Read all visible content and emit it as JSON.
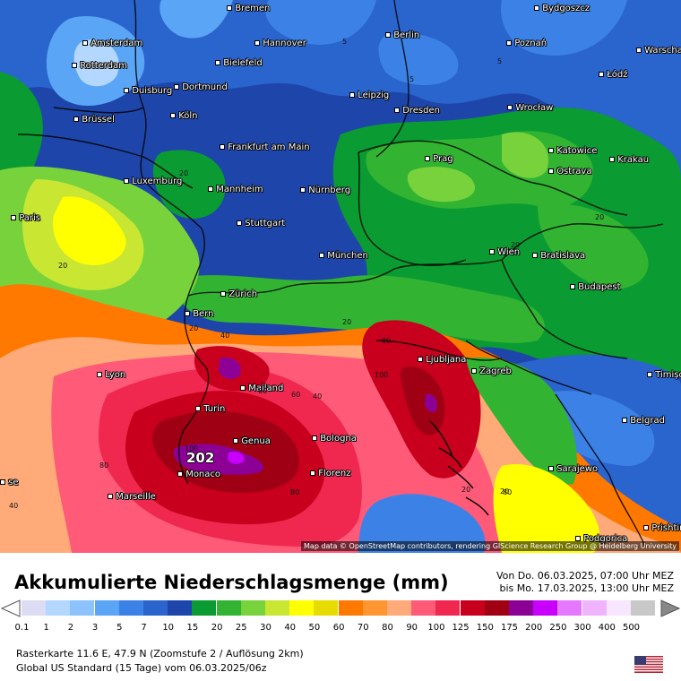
{
  "map": {
    "cities": [
      {
        "name": "Bremen"
      },
      {
        "name": "Amsterdam"
      },
      {
        "name": "Rotterdam"
      },
      {
        "name": "Hannover"
      },
      {
        "name": "Berlin"
      },
      {
        "name": "Bydgoszcz"
      },
      {
        "name": "Poznań"
      },
      {
        "name": "Warscha"
      },
      {
        "name": "Bielefeld"
      },
      {
        "name": "Duisburg"
      },
      {
        "name": "Dortmund"
      },
      {
        "name": "Łódź"
      },
      {
        "name": "Leipzig"
      },
      {
        "name": "Brüssel"
      },
      {
        "name": "Köln"
      },
      {
        "name": "Dresden"
      },
      {
        "name": "Wrocław"
      },
      {
        "name": "Frankfurt am Main"
      },
      {
        "name": "Katowice"
      },
      {
        "name": "Prag"
      },
      {
        "name": "Krakau"
      },
      {
        "name": "Ostrava"
      },
      {
        "name": "Luxemburg"
      },
      {
        "name": "Mannheim"
      },
      {
        "name": "Nürnberg"
      },
      {
        "name": "Paris"
      },
      {
        "name": "Stuttgart"
      },
      {
        "name": "Wien"
      },
      {
        "name": "Bratislava"
      },
      {
        "name": "München"
      },
      {
        "name": "Budapest"
      },
      {
        "name": "Zürich"
      },
      {
        "name": "Bern"
      },
      {
        "name": "Ljubljana"
      },
      {
        "name": "Lyon"
      },
      {
        "name": "Zagreb"
      },
      {
        "name": "Timișoa"
      },
      {
        "name": "Mailand"
      },
      {
        "name": "Turin"
      },
      {
        "name": "Belgrad"
      },
      {
        "name": "Genua"
      },
      {
        "name": "Bologna"
      },
      {
        "name": "Monaco"
      },
      {
        "name": "Sarajewo"
      },
      {
        "name": "Florenz"
      },
      {
        "name": "Marseille"
      },
      {
        "name": "Prishtin"
      },
      {
        "name": "Podgorica"
      },
      {
        "name": "se"
      }
    ],
    "contour_values": [
      "5",
      "5",
      "5",
      "20",
      "20",
      "20",
      "20",
      "20",
      "20",
      "40",
      "40",
      "60",
      "60",
      "80",
      "80",
      "80",
      "100",
      "100",
      "80",
      "20",
      "40",
      "20"
    ],
    "peak_value": "202",
    "attribution": "Map data © OpenStreetMap contributors, rendering GIScience Research Group @ Heidelberg University"
  },
  "header": {
    "title": "Akkumulierte Niederschlagsmenge (mm)",
    "period_from": "Von Do. 06.03.2025, 07:00 Uhr MEZ",
    "period_to": "bis Mo. 17.03.2025, 13:00 Uhr MEZ"
  },
  "legend": {
    "unit": "mm",
    "items": [
      {
        "label": "0.1",
        "color": "#dcdcf5"
      },
      {
        "label": "1",
        "color": "#b4d7ff"
      },
      {
        "label": "2",
        "color": "#8cc3ff"
      },
      {
        "label": "3",
        "color": "#5aa5f5"
      },
      {
        "label": "5",
        "color": "#3c82e6"
      },
      {
        "label": "7",
        "color": "#2a64cd"
      },
      {
        "label": "10",
        "color": "#1e46aa"
      },
      {
        "label": "15",
        "color": "#0a9b32"
      },
      {
        "label": "20",
        "color": "#32b432"
      },
      {
        "label": "25",
        "color": "#78d23c"
      },
      {
        "label": "30",
        "color": "#c8e632"
      },
      {
        "label": "40",
        "color": "#ffff00"
      },
      {
        "label": "50",
        "color": "#e6dc00"
      },
      {
        "label": "60",
        "color": "#ff7800"
      },
      {
        "label": "70",
        "color": "#ff9632"
      },
      {
        "label": "80",
        "color": "#ffaa78"
      },
      {
        "label": "90",
        "color": "#ff5a78"
      },
      {
        "label": "100",
        "color": "#f02850"
      },
      {
        "label": "125",
        "color": "#c8001e"
      },
      {
        "label": "150",
        "color": "#a00014"
      },
      {
        "label": "175",
        "color": "#8c0096"
      },
      {
        "label": "200",
        "color": "#c800ff"
      },
      {
        "label": "250",
        "color": "#e678ff"
      },
      {
        "label": "300",
        "color": "#f0b4ff"
      },
      {
        "label": "400",
        "color": "#f8e6ff"
      },
      {
        "label": "500",
        "color": "#c8c8c8"
      }
    ]
  },
  "footer": {
    "line1": "Rasterkarte 11.6 E, 47.9 N (Zoomstufe 2 / Auflösung 2km)",
    "line2": "Global US Standard (15 Tage) vom 06.03.2025/06z"
  }
}
